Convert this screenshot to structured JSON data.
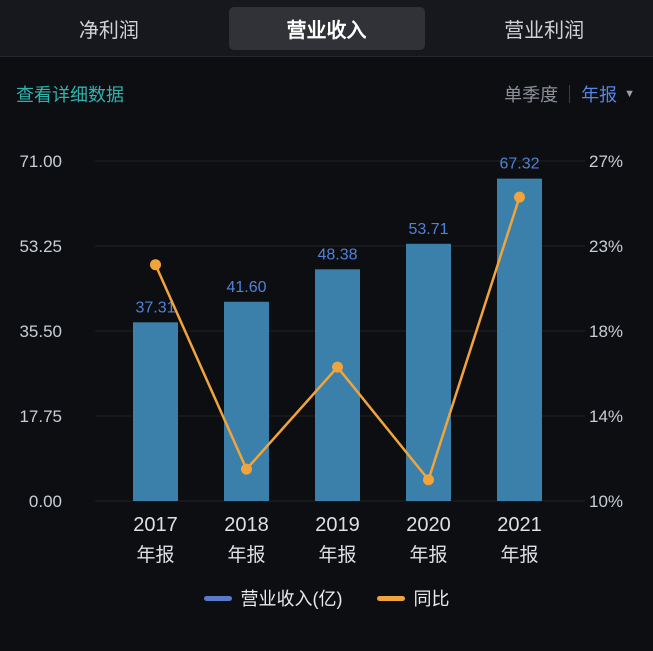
{
  "header": {
    "tabs": [
      {
        "label": "净利润",
        "selected": false
      },
      {
        "label": "营业收入",
        "selected": true
      },
      {
        "label": "营业利润",
        "selected": false
      }
    ]
  },
  "subheader": {
    "detail_link": "查看详细数据",
    "period_options": [
      {
        "label": "单季度",
        "selected": false
      },
      {
        "label": "年报",
        "selected": true
      }
    ],
    "dropdown_icon": "▼"
  },
  "chart_data": {
    "type": "bar",
    "subtype": "bar+line combo, dual axis",
    "categories": [
      {
        "year": "2017",
        "period": "年报"
      },
      {
        "year": "2018",
        "period": "年报"
      },
      {
        "year": "2019",
        "period": "年报"
      },
      {
        "year": "2020",
        "period": "年报"
      },
      {
        "year": "2021",
        "period": "年报"
      }
    ],
    "series": [
      {
        "name": "营业收入(亿)",
        "type": "bar",
        "axis": "left",
        "values": [
          37.31,
          41.6,
          48.38,
          53.71,
          67.32
        ],
        "value_labels": [
          "37.31",
          "41.60",
          "48.38",
          "53.71",
          "67.32"
        ],
        "color": "#3b7fab",
        "label_color": "#4f82d9"
      },
      {
        "name": "同比",
        "type": "line",
        "axis": "right",
        "values": [
          21.9,
          11.5,
          16.3,
          11.0,
          25.3
        ],
        "color": "#f1a43c"
      }
    ],
    "left_axis": {
      "ticks": [
        0.0,
        17.75,
        35.5,
        53.25,
        71.0
      ],
      "labels": [
        "0.00",
        "17.75",
        "35.50",
        "53.25",
        "71.00"
      ],
      "range": [
        0,
        71
      ]
    },
    "right_axis": {
      "ticks": [
        10,
        14,
        18,
        23,
        27
      ],
      "labels": [
        "10%",
        "14%",
        "18%",
        "23%",
        "27%"
      ]
    },
    "grid": true,
    "legend_position": "bottom"
  },
  "legend": [
    {
      "label": "营业收入(亿)",
      "color": "#5b79c9"
    },
    {
      "label": "同比",
      "color": "#f1a43c"
    }
  ],
  "colors": {
    "background": "#0d0e12",
    "header_background": "#17181d",
    "tab_selected_background": "#303238",
    "accent_teal": "#2fb3af",
    "accent_blue": "#5585e6",
    "bar_fill": "#3b7fab",
    "bar_value_label": "#4f82d9",
    "line_orange": "#f1a43c",
    "axis_text": "#c9ced6",
    "x_label_text": "#dde0e4"
  }
}
